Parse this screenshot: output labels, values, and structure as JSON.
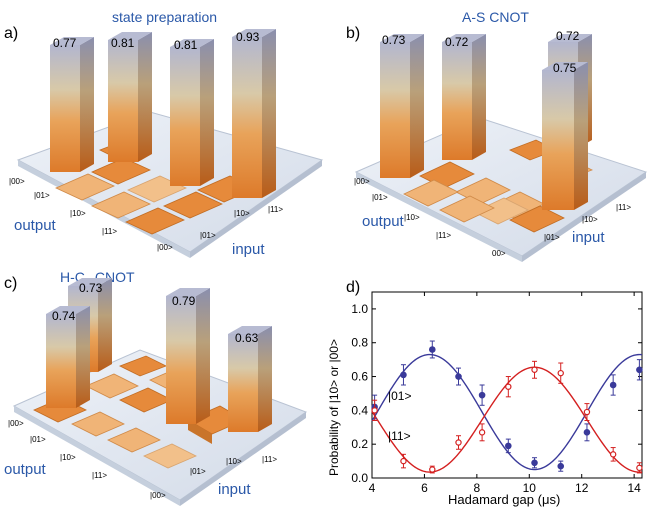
{
  "panels": [
    {
      "label": "a)",
      "title": "state preparation",
      "row_axis_label": "output",
      "col_axis_label": "input",
      "row_ticks": [
        "|00>",
        "|01>",
        "|10>",
        "|11>"
      ],
      "col_ticks": [
        "|00>",
        "|01>",
        "|10>",
        "|11>"
      ],
      "bar_values": [
        "0.77",
        "0.81",
        "0.81",
        "0.93"
      ]
    },
    {
      "label": "b)",
      "title": "A-S CNOT",
      "row_axis_label": "output",
      "col_axis_label": "input",
      "row_ticks": [
        "|00>",
        "|01>",
        "|10>",
        "|11>"
      ],
      "col_ticks": [
        "00>",
        "|01>",
        "|10>",
        "|11>"
      ],
      "bar_values": [
        "0.73",
        "0.72",
        "0.72",
        "0.75"
      ]
    },
    {
      "label": "c)",
      "title_main": "H-C",
      "title_sub": "Z",
      "title_tail": " CNOT",
      "row_axis_label": "output",
      "col_axis_label": "input",
      "row_ticks": [
        "|00>",
        "|01>",
        "|10>",
        "|11>"
      ],
      "col_ticks": [
        "|00>",
        "|01>",
        "|10>",
        "|11>"
      ],
      "bar_values": [
        "0.73",
        "0.74",
        "0.79",
        "0.63"
      ]
    }
  ],
  "colors": {
    "bar_top": "#a9adc8",
    "bar_orange": "#e0893a",
    "floor": "#dde4ee",
    "title_blue": "#2a58a8",
    "blue_series": "#3a3a9a",
    "red_series": "#d42020"
  },
  "chart_data": {
    "label": "d)",
    "type": "scatter",
    "xlabel_main": "Hadamard gap (",
    "xlabel_unit": "μs",
    "xlabel_tail": ")",
    "ylabel": "Probability of |10> or |00>",
    "xlim": [
      4,
      14.3
    ],
    "ylim": [
      0,
      1.1
    ],
    "xticks": [
      4,
      6,
      8,
      10,
      12,
      14
    ],
    "yticks": [
      0.0,
      0.2,
      0.4,
      0.6,
      0.8,
      1.0
    ],
    "ytick_labels": [
      "0.0",
      "0.2",
      "0.4",
      "0.6",
      "0.8",
      "1.0"
    ],
    "series": [
      {
        "name": "|01>",
        "color": "#3a3a9a",
        "marker": "filled-circle",
        "points": [
          {
            "x": 4.1,
            "y": 0.42,
            "err": 0.07
          },
          {
            "x": 5.2,
            "y": 0.61,
            "err": 0.06
          },
          {
            "x": 6.3,
            "y": 0.76,
            "err": 0.05
          },
          {
            "x": 7.3,
            "y": 0.6,
            "err": 0.05
          },
          {
            "x": 8.2,
            "y": 0.49,
            "err": 0.06
          },
          {
            "x": 9.2,
            "y": 0.19,
            "err": 0.04
          },
          {
            "x": 10.2,
            "y": 0.09,
            "err": 0.03
          },
          {
            "x": 11.2,
            "y": 0.07,
            "err": 0.03
          },
          {
            "x": 12.2,
            "y": 0.27,
            "err": 0.05
          },
          {
            "x": 13.2,
            "y": 0.55,
            "err": 0.06
          },
          {
            "x": 14.2,
            "y": 0.64,
            "err": 0.06
          }
        ],
        "fit": {
          "offset": 0.39,
          "amplitude": 0.34,
          "period": 8.0,
          "phase_x": 6.2
        }
      },
      {
        "name": "|11>",
        "color": "#d42020",
        "marker": "open-circle",
        "points": [
          {
            "x": 4.1,
            "y": 0.4,
            "err": 0.06
          },
          {
            "x": 5.2,
            "y": 0.1,
            "err": 0.04
          },
          {
            "x": 6.3,
            "y": 0.05,
            "err": 0.02
          },
          {
            "x": 7.3,
            "y": 0.21,
            "err": 0.04
          },
          {
            "x": 8.2,
            "y": 0.27,
            "err": 0.05
          },
          {
            "x": 9.2,
            "y": 0.54,
            "err": 0.06
          },
          {
            "x": 10.2,
            "y": 0.64,
            "err": 0.05
          },
          {
            "x": 11.2,
            "y": 0.62,
            "err": 0.06
          },
          {
            "x": 12.2,
            "y": 0.39,
            "err": 0.05
          },
          {
            "x": 13.2,
            "y": 0.14,
            "err": 0.04
          },
          {
            "x": 14.2,
            "y": 0.06,
            "err": 0.03
          }
        ],
        "fit": {
          "offset": 0.345,
          "amplitude": 0.31,
          "period": 8.0,
          "phase_x": 10.2
        }
      }
    ]
  }
}
